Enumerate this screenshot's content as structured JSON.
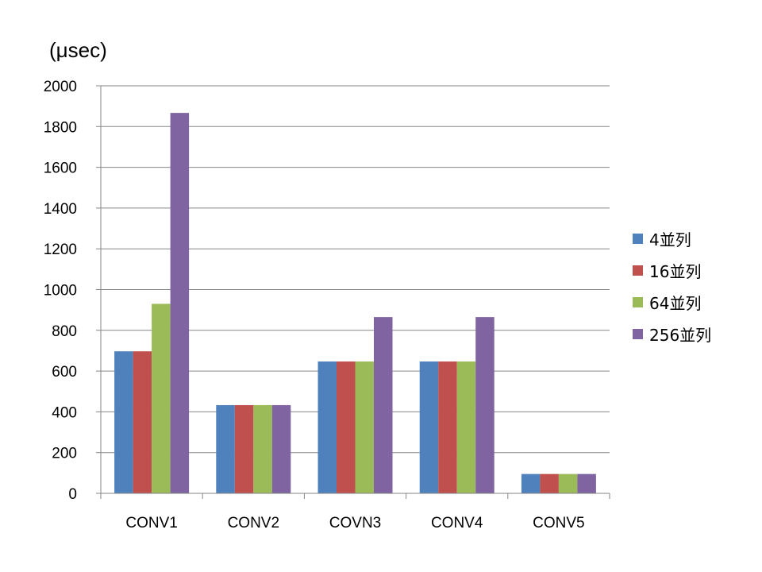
{
  "chart_data": {
    "type": "bar",
    "unit_label": "(μsec)",
    "categories": [
      "CONV1",
      "CONV2",
      "COVN3",
      "CONV4",
      "CONV5"
    ],
    "series": [
      {
        "name": "4並列",
        "color": "#4F81BD",
        "values": [
          697,
          433,
          647,
          647,
          95
        ]
      },
      {
        "name": "16並列",
        "color": "#C0504D",
        "values": [
          697,
          433,
          647,
          647,
          95
        ]
      },
      {
        "name": "64並列",
        "color": "#9BBB59",
        "values": [
          930,
          433,
          647,
          647,
          95
        ]
      },
      {
        "name": "256並列",
        "color": "#8064A2",
        "values": [
          1867,
          433,
          865,
          865,
          95
        ]
      }
    ],
    "ylim": [
      0,
      2000
    ],
    "yticks": [
      "0",
      "200",
      "400",
      "600",
      "800",
      "1000",
      "1200",
      "1400",
      "1600",
      "1800",
      "2000"
    ],
    "grid": true,
    "legend_position": "right"
  }
}
